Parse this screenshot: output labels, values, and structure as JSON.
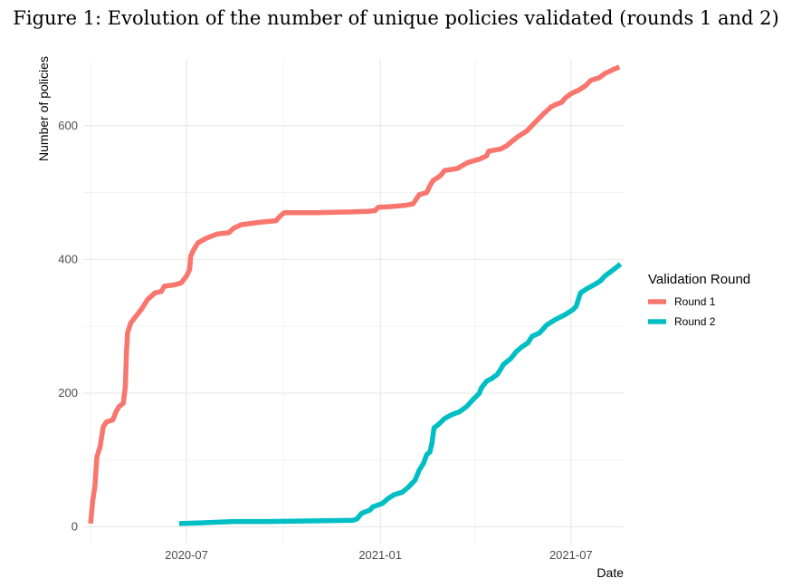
{
  "figure": {
    "title": "Figure 1: Evolution of the number of unique policies validated (rounds 1 and 2)"
  },
  "chart_data": {
    "type": "line",
    "xlabel": "Date",
    "ylabel": "Number of policies",
    "xlim": [
      "2020-03-25",
      "2021-08-20"
    ],
    "ylim": [
      -25,
      700
    ],
    "x_ticks": [
      {
        "label": "2020-07",
        "date": "2020-07-01"
      },
      {
        "label": "2021-01",
        "date": "2021-01-01"
      },
      {
        "label": "2021-07",
        "date": "2021-07-01"
      }
    ],
    "y_ticks": [
      0,
      200,
      400,
      600
    ],
    "grid": true,
    "legend": {
      "title": "Validation Round",
      "position": "right"
    },
    "series": [
      {
        "name": "Round 1",
        "color": "#F8766D",
        "points": [
          [
            "2020-04-01",
            5
          ],
          [
            "2020-04-03",
            40
          ],
          [
            "2020-04-05",
            60
          ],
          [
            "2020-04-07",
            105
          ],
          [
            "2020-04-10",
            120
          ],
          [
            "2020-04-13",
            150
          ],
          [
            "2020-04-16",
            157
          ],
          [
            "2020-04-22",
            160
          ],
          [
            "2020-04-25",
            172
          ],
          [
            "2020-04-28",
            180
          ],
          [
            "2020-05-02",
            185
          ],
          [
            "2020-05-04",
            210
          ],
          [
            "2020-05-05",
            260
          ],
          [
            "2020-05-06",
            290
          ],
          [
            "2020-05-09",
            305
          ],
          [
            "2020-05-14",
            315
          ],
          [
            "2020-05-19",
            325
          ],
          [
            "2020-05-25",
            340
          ],
          [
            "2020-06-01",
            350
          ],
          [
            "2020-06-07",
            352
          ],
          [
            "2020-06-10",
            360
          ],
          [
            "2020-06-20",
            362
          ],
          [
            "2020-06-26",
            365
          ],
          [
            "2020-07-01",
            375
          ],
          [
            "2020-07-04",
            385
          ],
          [
            "2020-07-05",
            405
          ],
          [
            "2020-07-08",
            415
          ],
          [
            "2020-07-12",
            425
          ],
          [
            "2020-07-20",
            432
          ],
          [
            "2020-07-30",
            438
          ],
          [
            "2020-08-10",
            440
          ],
          [
            "2020-08-15",
            447
          ],
          [
            "2020-08-22",
            452
          ],
          [
            "2020-09-01",
            454
          ],
          [
            "2020-09-10",
            456
          ],
          [
            "2020-09-24",
            458
          ],
          [
            "2020-09-28",
            465
          ],
          [
            "2020-10-02",
            470
          ],
          [
            "2020-11-01",
            470
          ],
          [
            "2020-12-01",
            471
          ],
          [
            "2020-12-20",
            472
          ],
          [
            "2020-12-27",
            473
          ],
          [
            "2020-12-30",
            478
          ],
          [
            "2021-01-10",
            479
          ],
          [
            "2021-01-25",
            481
          ],
          [
            "2021-02-01",
            483
          ],
          [
            "2021-02-04",
            490
          ],
          [
            "2021-02-07",
            497
          ],
          [
            "2021-02-14",
            500
          ],
          [
            "2021-02-17",
            510
          ],
          [
            "2021-02-20",
            518
          ],
          [
            "2021-02-27",
            525
          ],
          [
            "2021-03-03",
            533
          ],
          [
            "2021-03-15",
            536
          ],
          [
            "2021-03-25",
            545
          ],
          [
            "2021-04-05",
            550
          ],
          [
            "2021-04-12",
            555
          ],
          [
            "2021-04-14",
            562
          ],
          [
            "2021-04-25",
            565
          ],
          [
            "2021-05-01",
            570
          ],
          [
            "2021-05-07",
            578
          ],
          [
            "2021-05-12",
            584
          ],
          [
            "2021-05-20",
            592
          ],
          [
            "2021-05-28",
            605
          ],
          [
            "2021-06-05",
            618
          ],
          [
            "2021-06-12",
            628
          ],
          [
            "2021-06-17",
            632
          ],
          [
            "2021-06-22",
            635
          ],
          [
            "2021-06-26",
            642
          ],
          [
            "2021-07-01",
            648
          ],
          [
            "2021-07-08",
            653
          ],
          [
            "2021-07-15",
            660
          ],
          [
            "2021-07-20",
            668
          ],
          [
            "2021-07-28",
            672
          ],
          [
            "2021-08-02",
            678
          ],
          [
            "2021-08-10",
            684
          ],
          [
            "2021-08-16",
            688
          ]
        ]
      },
      {
        "name": "Round 2",
        "color": "#00BFC4",
        "points": [
          [
            "2020-06-24",
            5
          ],
          [
            "2020-07-15",
            6
          ],
          [
            "2020-08-15",
            8
          ],
          [
            "2020-09-15",
            8
          ],
          [
            "2020-11-01",
            9
          ],
          [
            "2020-12-06",
            10
          ],
          [
            "2020-12-10",
            12
          ],
          [
            "2020-12-14",
            20
          ],
          [
            "2020-12-22",
            25
          ],
          [
            "2020-12-25",
            30
          ],
          [
            "2021-01-03",
            35
          ],
          [
            "2021-01-08",
            42
          ],
          [
            "2021-01-14",
            48
          ],
          [
            "2021-01-22",
            52
          ],
          [
            "2021-01-28",
            60
          ],
          [
            "2021-02-03",
            70
          ],
          [
            "2021-02-07",
            85
          ],
          [
            "2021-02-11",
            95
          ],
          [
            "2021-02-14",
            108
          ],
          [
            "2021-02-17",
            112
          ],
          [
            "2021-02-19",
            125
          ],
          [
            "2021-02-21",
            148
          ],
          [
            "2021-02-25",
            153
          ],
          [
            "2021-03-03",
            162
          ],
          [
            "2021-03-10",
            168
          ],
          [
            "2021-03-17",
            172
          ],
          [
            "2021-03-24",
            180
          ],
          [
            "2021-03-31",
            192
          ],
          [
            "2021-04-05",
            200
          ],
          [
            "2021-04-07",
            208
          ],
          [
            "2021-04-12",
            218
          ],
          [
            "2021-04-17",
            222
          ],
          [
            "2021-04-22",
            228
          ],
          [
            "2021-04-25",
            235
          ],
          [
            "2021-04-28",
            243
          ],
          [
            "2021-05-05",
            252
          ],
          [
            "2021-05-10",
            262
          ],
          [
            "2021-05-16",
            270
          ],
          [
            "2021-05-21",
            275
          ],
          [
            "2021-05-25",
            285
          ],
          [
            "2021-06-01",
            290
          ],
          [
            "2021-06-08",
            302
          ],
          [
            "2021-06-16",
            310
          ],
          [
            "2021-06-26",
            318
          ],
          [
            "2021-07-03",
            325
          ],
          [
            "2021-07-06",
            330
          ],
          [
            "2021-07-10",
            350
          ],
          [
            "2021-07-17",
            357
          ],
          [
            "2021-07-24",
            363
          ],
          [
            "2021-07-29",
            368
          ],
          [
            "2021-08-02",
            375
          ],
          [
            "2021-08-08",
            382
          ],
          [
            "2021-08-13",
            388
          ],
          [
            "2021-08-17",
            393
          ]
        ]
      }
    ]
  }
}
